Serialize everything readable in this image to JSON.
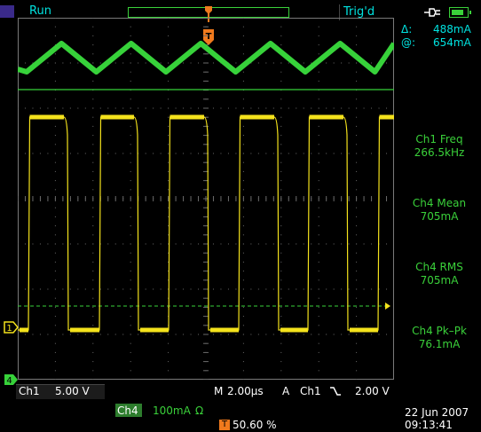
{
  "status": {
    "run_label": "Run",
    "trig_label": "Trig'd"
  },
  "cursor": {
    "delta_symbol": "Δ:",
    "delta_value": "488mA",
    "at_symbol": "@:",
    "at_value": "654mA"
  },
  "measurements": [
    {
      "label": "Ch1 Freq",
      "value": "266.5kHz"
    },
    {
      "label": "Ch4 Mean",
      "value": "705mA"
    },
    {
      "label": "Ch4 RMS",
      "value": "705mA"
    },
    {
      "label": "Ch4 Pk–Pk",
      "value": "76.1mA"
    }
  ],
  "markers": {
    "ch1": "1",
    "ch4": "4",
    "trigger": "T"
  },
  "bottom": {
    "ch1_label": "Ch1",
    "ch1_scale": "5.00 V",
    "time_prefix": "M",
    "timebase": "2.00µs",
    "trig_prefix": "A",
    "trig_channel": "Ch1",
    "trig_slope_icon": "falling-edge-icon",
    "trig_level": "2.00 V",
    "ch4_label": "Ch4",
    "ch4_scale": "100mA",
    "ch4_unit": "Ω",
    "trig_position": "50.60 %",
    "date": "22 Jun 2007",
    "time": "09:13:41"
  },
  "battery_level": 0.8,
  "colors": {
    "ch1": "#f4e21c",
    "ch4": "#37d23a",
    "text_cyan": "#00e3e0",
    "text_green": "#3ad13a",
    "trigger": "#f07a1d"
  }
}
